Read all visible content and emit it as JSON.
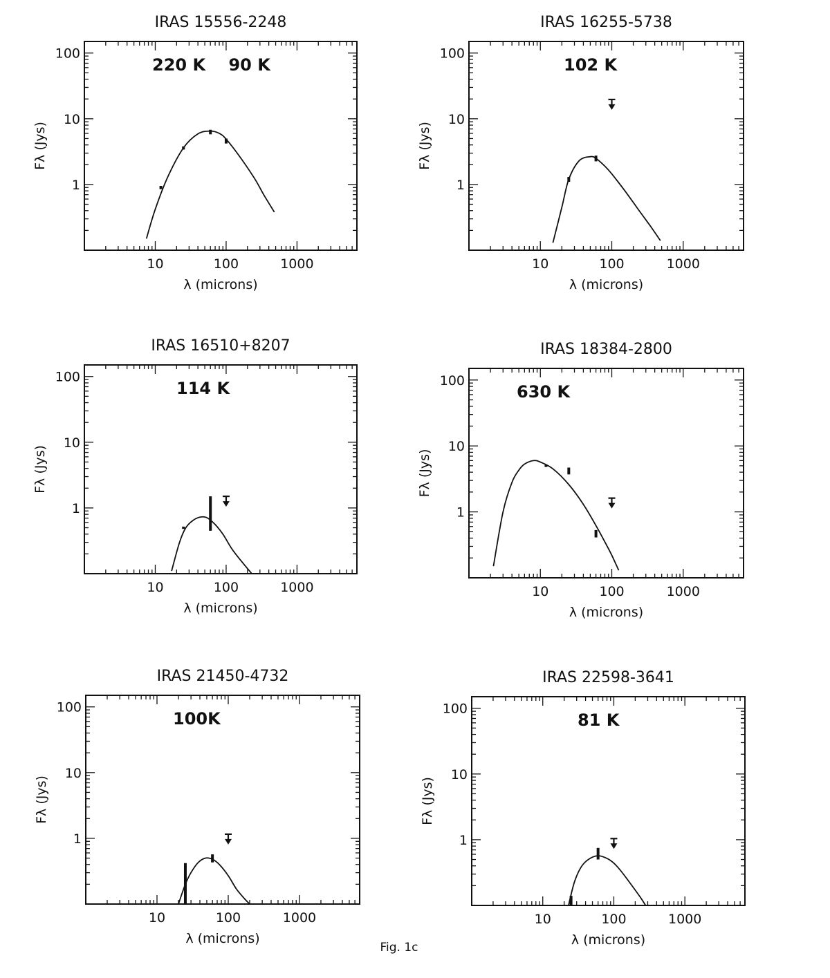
{
  "figure_caption": "Fig. 1c",
  "chart_data": [
    {
      "type": "line",
      "title": "IRAS 15556-2248",
      "annotation": "220 K    90 K",
      "xlabel": "λ (microns)",
      "ylabel": "Fλ (Jys)",
      "xscale": "log",
      "yscale": "log",
      "xlim": [
        1,
        7000
      ],
      "ylim": [
        0.1,
        150
      ],
      "x_ticklabels": [
        "10",
        "100",
        "1000"
      ],
      "y_ticklabels": [
        "1",
        "10",
        "100"
      ],
      "series": [
        {
          "kind": "fit_curve",
          "x": [
            7.5,
            10,
            15,
            25,
            40,
            60,
            80,
            100,
            150,
            250,
            350,
            480
          ],
          "y": [
            0.15,
            0.42,
            1.3,
            3.6,
            5.9,
            6.5,
            6.0,
            4.9,
            2.8,
            1.25,
            0.66,
            0.38
          ]
        },
        {
          "kind": "measurements",
          "x": [
            12,
            25,
            60,
            100
          ],
          "y": [
            0.9,
            3.6,
            6.3,
            4.6
          ],
          "err_low": [
            0.85,
            3.4,
            5.8,
            4.2
          ],
          "err_high": [
            0.95,
            3.8,
            6.8,
            5.0
          ]
        }
      ]
    },
    {
      "type": "line",
      "title": "IRAS 16255-5738",
      "annotation": "102 K",
      "xlabel": "λ (microns)",
      "ylabel": "Fλ (Jys)",
      "xscale": "log",
      "yscale": "log",
      "xlim": [
        1,
        7000
      ],
      "ylim": [
        0.1,
        150
      ],
      "x_ticklabels": [
        "10",
        "100",
        "1000"
      ],
      "y_ticklabels": [
        "1",
        "10",
        "100"
      ],
      "series": [
        {
          "kind": "fit_curve",
          "x": [
            15,
            20,
            25,
            35,
            50,
            60,
            80,
            100,
            150,
            250,
            350,
            480
          ],
          "y": [
            0.13,
            0.45,
            1.2,
            2.3,
            2.65,
            2.5,
            1.9,
            1.45,
            0.82,
            0.38,
            0.23,
            0.14
          ]
        },
        {
          "kind": "measurements",
          "x": [
            25,
            60
          ],
          "y": [
            1.2,
            2.5
          ],
          "err_low": [
            1.1,
            2.25
          ],
          "err_high": [
            1.3,
            2.75
          ]
        },
        {
          "kind": "upper_limits",
          "x": [
            100
          ],
          "y": [
            17
          ]
        }
      ]
    },
    {
      "type": "line",
      "title": "IRAS 16510+8207",
      "annotation": "114 K",
      "xlabel": "λ (microns)",
      "ylabel": "Fλ (Jys)",
      "xscale": "log",
      "yscale": "log",
      "xlim": [
        1,
        7000
      ],
      "ylim": [
        0.1,
        150
      ],
      "x_ticklabels": [
        "10",
        "100",
        "1000"
      ],
      "y_ticklabels": [
        "1",
        "10",
        "100"
      ],
      "series": [
        {
          "kind": "fit_curve",
          "x": [
            17,
            22,
            27,
            35,
            45,
            55,
            70,
            90,
            120,
            160,
            230
          ],
          "y": [
            0.11,
            0.3,
            0.5,
            0.66,
            0.73,
            0.7,
            0.56,
            0.4,
            0.24,
            0.16,
            0.1
          ]
        },
        {
          "kind": "measurements",
          "x": [
            25,
            60
          ],
          "y": [
            0.5,
            0.75
          ],
          "err_low": [
            0.48,
            0.45
          ],
          "err_high": [
            0.52,
            1.5
          ]
        },
        {
          "kind": "upper_limits",
          "x": [
            100
          ],
          "y": [
            1.3
          ]
        }
      ]
    },
    {
      "type": "line",
      "title": "IRAS 18384-2800",
      "annotation": "630 K",
      "xlabel": "λ (microns)",
      "ylabel": "Fλ (Jys)",
      "xscale": "log",
      "yscale": "log",
      "xlim": [
        1,
        7000
      ],
      "ylim": [
        0.1,
        150
      ],
      "x_ticklabels": [
        "10",
        "100",
        "1000"
      ],
      "y_ticklabels": [
        "1",
        "10",
        "100"
      ],
      "series": [
        {
          "kind": "fit_curve",
          "x": [
            2.2,
            3,
            4,
            5,
            6,
            8,
            10,
            15,
            25,
            40,
            60,
            80,
            100,
            125
          ],
          "y": [
            0.15,
            1.0,
            2.8,
            4.3,
            5.3,
            6.0,
            5.7,
            4.5,
            2.6,
            1.3,
            0.62,
            0.35,
            0.22,
            0.13
          ]
        },
        {
          "kind": "measurements",
          "x": [
            12,
            25,
            60
          ],
          "y": [
            5.0,
            4.2,
            0.47
          ],
          "err_low": [
            4.8,
            3.7,
            0.41
          ],
          "err_high": [
            5.2,
            4.7,
            0.53
          ]
        },
        {
          "kind": "upper_limits",
          "x": [
            100
          ],
          "y": [
            1.4
          ]
        }
      ]
    },
    {
      "type": "line",
      "title": "IRAS 21450-4732",
      "annotation": "100K",
      "xlabel": "λ (microns)",
      "ylabel": "Fλ (Jys)",
      "xscale": "log",
      "yscale": "log",
      "xlim": [
        1,
        7000
      ],
      "ylim": [
        0.1,
        150
      ],
      "x_ticklabels": [
        "10",
        "100",
        "1000"
      ],
      "y_ticklabels": [
        "1",
        "10",
        "100"
      ],
      "series": [
        {
          "kind": "fit_curve",
          "x": [
            20,
            25,
            30,
            38,
            48,
            60,
            75,
            100,
            130,
            170,
            200
          ],
          "y": [
            0.1,
            0.2,
            0.3,
            0.43,
            0.5,
            0.48,
            0.4,
            0.27,
            0.17,
            0.12,
            0.1
          ]
        },
        {
          "kind": "measurements",
          "x": [
            25,
            60
          ],
          "y": [
            0.22,
            0.5
          ],
          "err_low": [
            0.1,
            0.43
          ],
          "err_high": [
            0.42,
            0.57
          ]
        },
        {
          "kind": "upper_limits",
          "x": [
            100
          ],
          "y": [
            1.0
          ]
        }
      ]
    },
    {
      "type": "line",
      "title": "IRAS 22598-3641",
      "annotation": "81 K",
      "xlabel": "λ (microns)",
      "ylabel": "Fλ (Jys)",
      "xscale": "log",
      "yscale": "log",
      "xlim": [
        1,
        7000
      ],
      "ylim": [
        0.1,
        150
      ],
      "x_ticklabels": [
        "10",
        "100",
        "1000"
      ],
      "y_ticklabels": [
        "1",
        "10",
        "100"
      ],
      "series": [
        {
          "kind": "fit_curve",
          "x": [
            23,
            28,
            35,
            45,
            60,
            80,
            100,
            130,
            180,
            240,
            280
          ],
          "y": [
            0.1,
            0.23,
            0.39,
            0.51,
            0.57,
            0.52,
            0.44,
            0.32,
            0.2,
            0.13,
            0.1
          ]
        },
        {
          "kind": "measurements",
          "x": [
            25,
            60
          ],
          "y": [
            0.12,
            0.6
          ],
          "err_low": [
            0.1,
            0.5
          ],
          "err_high": [
            0.14,
            0.75
          ]
        },
        {
          "kind": "upper_limits",
          "x": [
            100
          ],
          "y": [
            0.9
          ]
        }
      ]
    }
  ]
}
